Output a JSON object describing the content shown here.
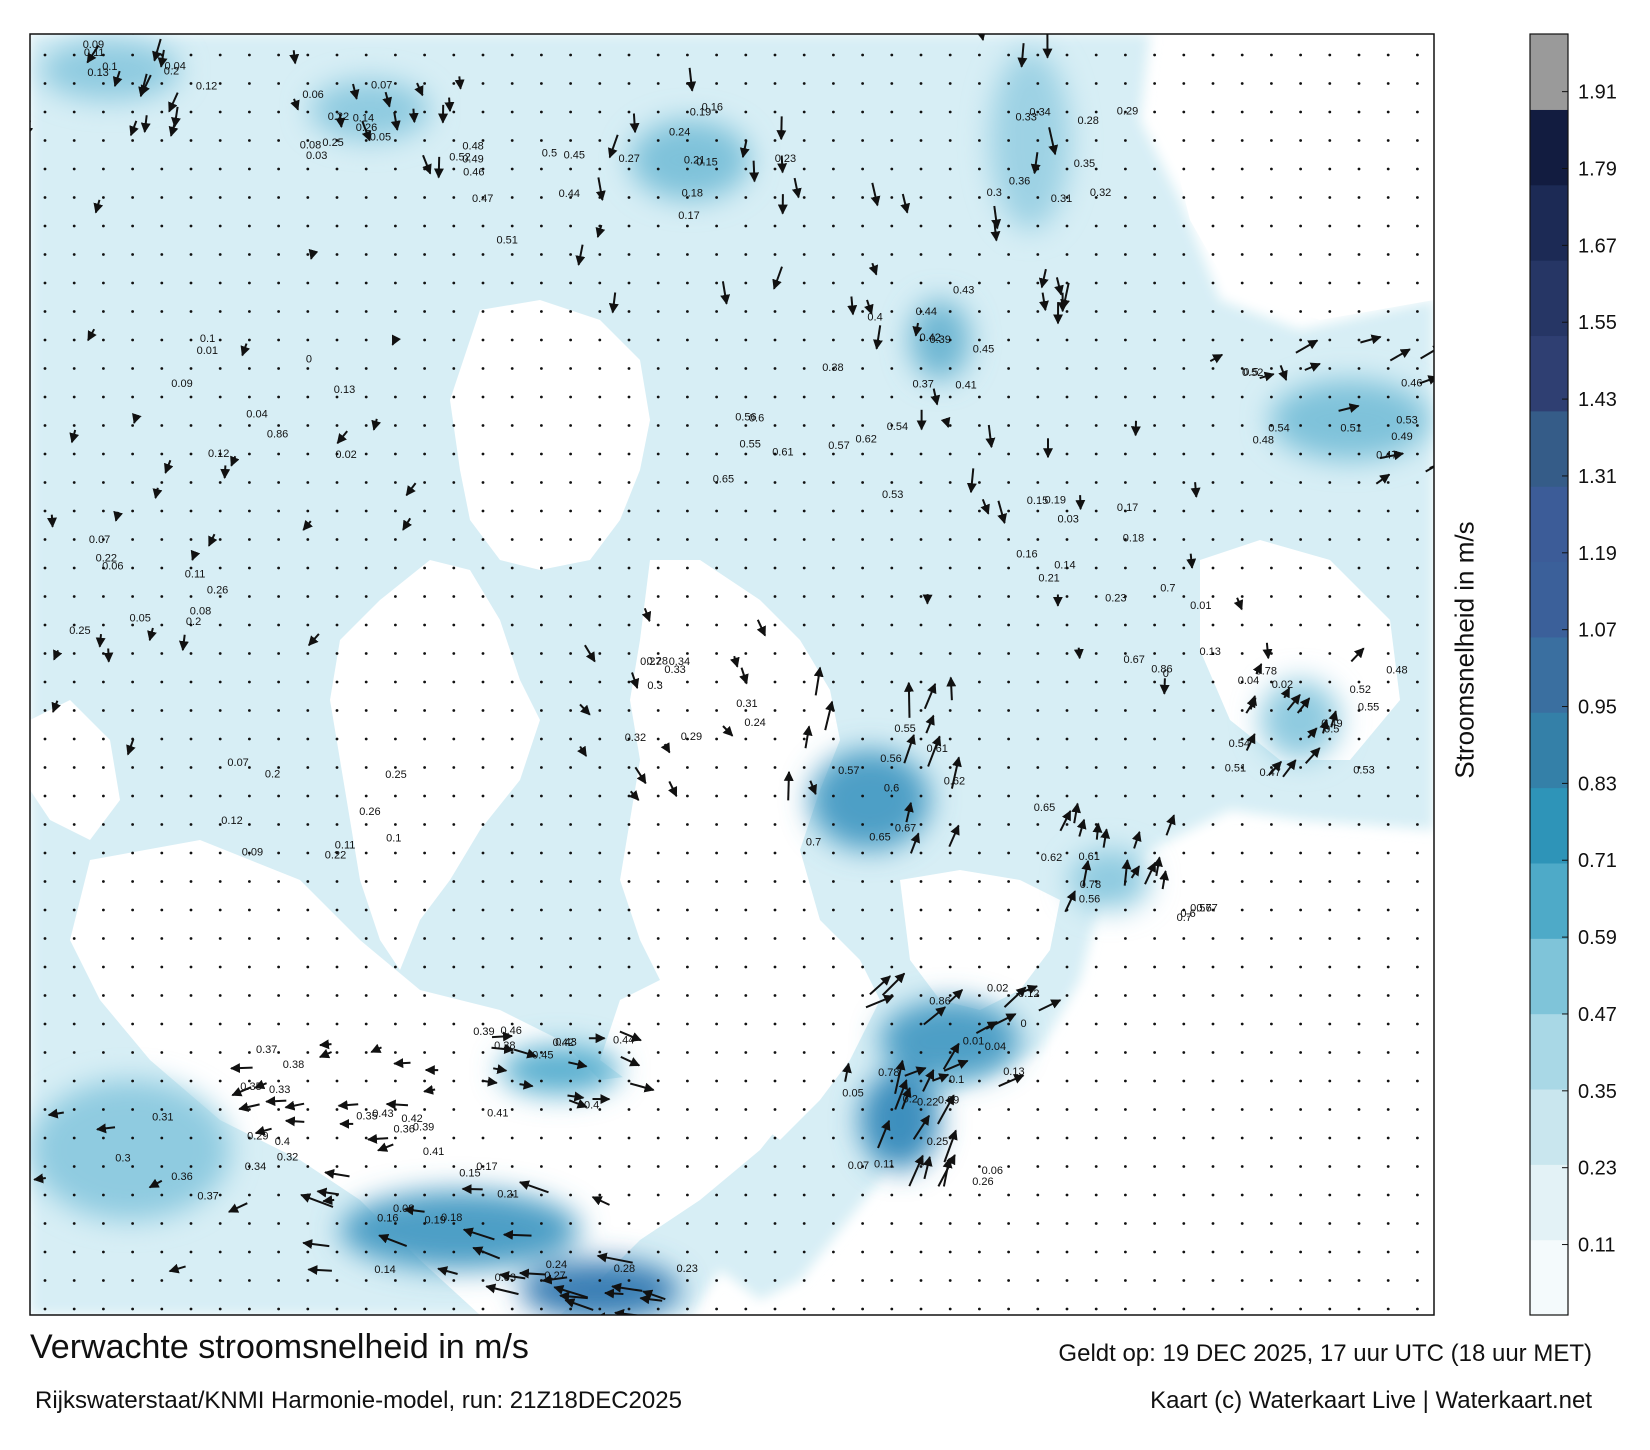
{
  "title": "Verwachte stroomsnelheid in m/s",
  "subtitle": "Rijkswaterstaat/KNMI Harmonie-model, run: 21Z18DEC2025",
  "valid_time": "Geldt op: 19 DEC 2025, 17 uur UTC (18 uur MET)",
  "credit": "Kaart (c) Waterkaart Live | Waterkaart.net",
  "colorbar": {
    "label": "Stroomsnelheid in m/s",
    "ticks": [
      "1.91",
      "1.79",
      "1.67",
      "1.55",
      "1.43",
      "1.31",
      "1.19",
      "1.07",
      "0.95",
      "0.83",
      "0.71",
      "0.59",
      "0.47",
      "0.35",
      "0.23",
      "0.11"
    ],
    "tick_values": [
      1.91,
      1.79,
      1.67,
      1.55,
      1.43,
      1.31,
      1.19,
      1.07,
      0.95,
      0.83,
      0.71,
      0.59,
      0.47,
      0.35,
      0.23,
      0.11
    ],
    "range": [
      0,
      2.0
    ],
    "band_colors": [
      "#f4fafc",
      "#e3f2f6",
      "#c9e6ee",
      "#a9d8e6",
      "#7fc4d9",
      "#4eaac8",
      "#2e94b8",
      "#3480a8",
      "#3a6fa0",
      "#3b609a",
      "#3c5c98",
      "#355c88",
      "#2f3f72",
      "#263665",
      "#1c2a55",
      "#121c40",
      "#9a9a9a"
    ]
  },
  "map_colors": {
    "land": "#ffffff",
    "sea_light": "#dbeff5",
    "sea_mid": "#9fd3e3",
    "sea_strong": "#3d9fc2",
    "sea_max": "#2c6fa6",
    "vector": "#111111"
  },
  "map_labels": [
    "0.13",
    "0.04",
    "0.12",
    "0.1",
    "0.09",
    "0.11",
    "0.2",
    "0.25",
    "0.22",
    "0.26",
    "0.07",
    "0.06",
    "0.05",
    "0.08",
    "0.03",
    "0.14",
    "0.15",
    "0.16",
    "0.17",
    "0.18",
    "0.19",
    "0.21",
    "0.23",
    "0.24",
    "0.27",
    "0.28",
    "0.29",
    "0.3",
    "0.31",
    "0.32",
    "0.33",
    "0.34",
    "0.35",
    "0.36",
    "0.37",
    "0.38",
    "0.39",
    "0.4",
    "0.41",
    "0.42",
    "0.43",
    "0.44",
    "0.45",
    "0.46",
    "0.47",
    "0.48",
    "0.49",
    "0.5",
    "0.51",
    "0.52",
    "0.53",
    "0.54",
    "0.55",
    "0.56",
    "0.57",
    "0.6",
    "0.61",
    "0.62",
    "0.65",
    "0.67",
    "0.7",
    "0.78",
    "0.86",
    "0.01",
    "0.02",
    "0"
  ]
}
